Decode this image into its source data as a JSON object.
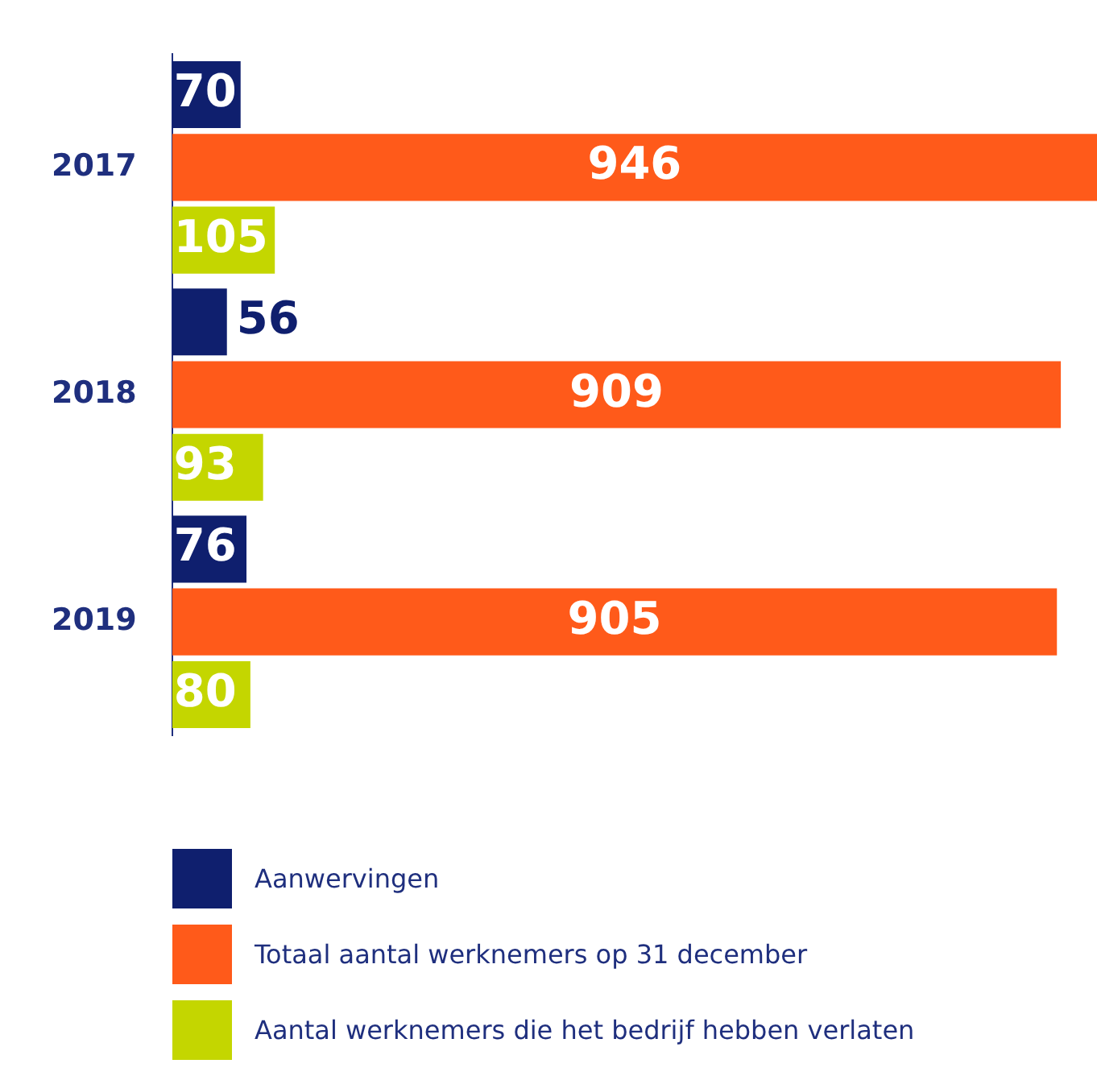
{
  "chart_data": {
    "type": "bar",
    "orientation": "horizontal",
    "categories": [
      "2017",
      "2018",
      "2019"
    ],
    "series": [
      {
        "name": "Aanwervingen",
        "color": "#0f1f6e",
        "values": [
          70,
          56,
          76
        ]
      },
      {
        "name": "Totaal aantal werknemers op 31 december",
        "color": "#ff5a1a",
        "values": [
          946,
          909,
          905
        ]
      },
      {
        "name": "Aantal werknemers die het bedrijf hebben verlaten",
        "color": "#c4d600",
        "values": [
          105,
          93,
          80
        ]
      }
    ],
    "data_labels": true,
    "legend": "bottom"
  }
}
